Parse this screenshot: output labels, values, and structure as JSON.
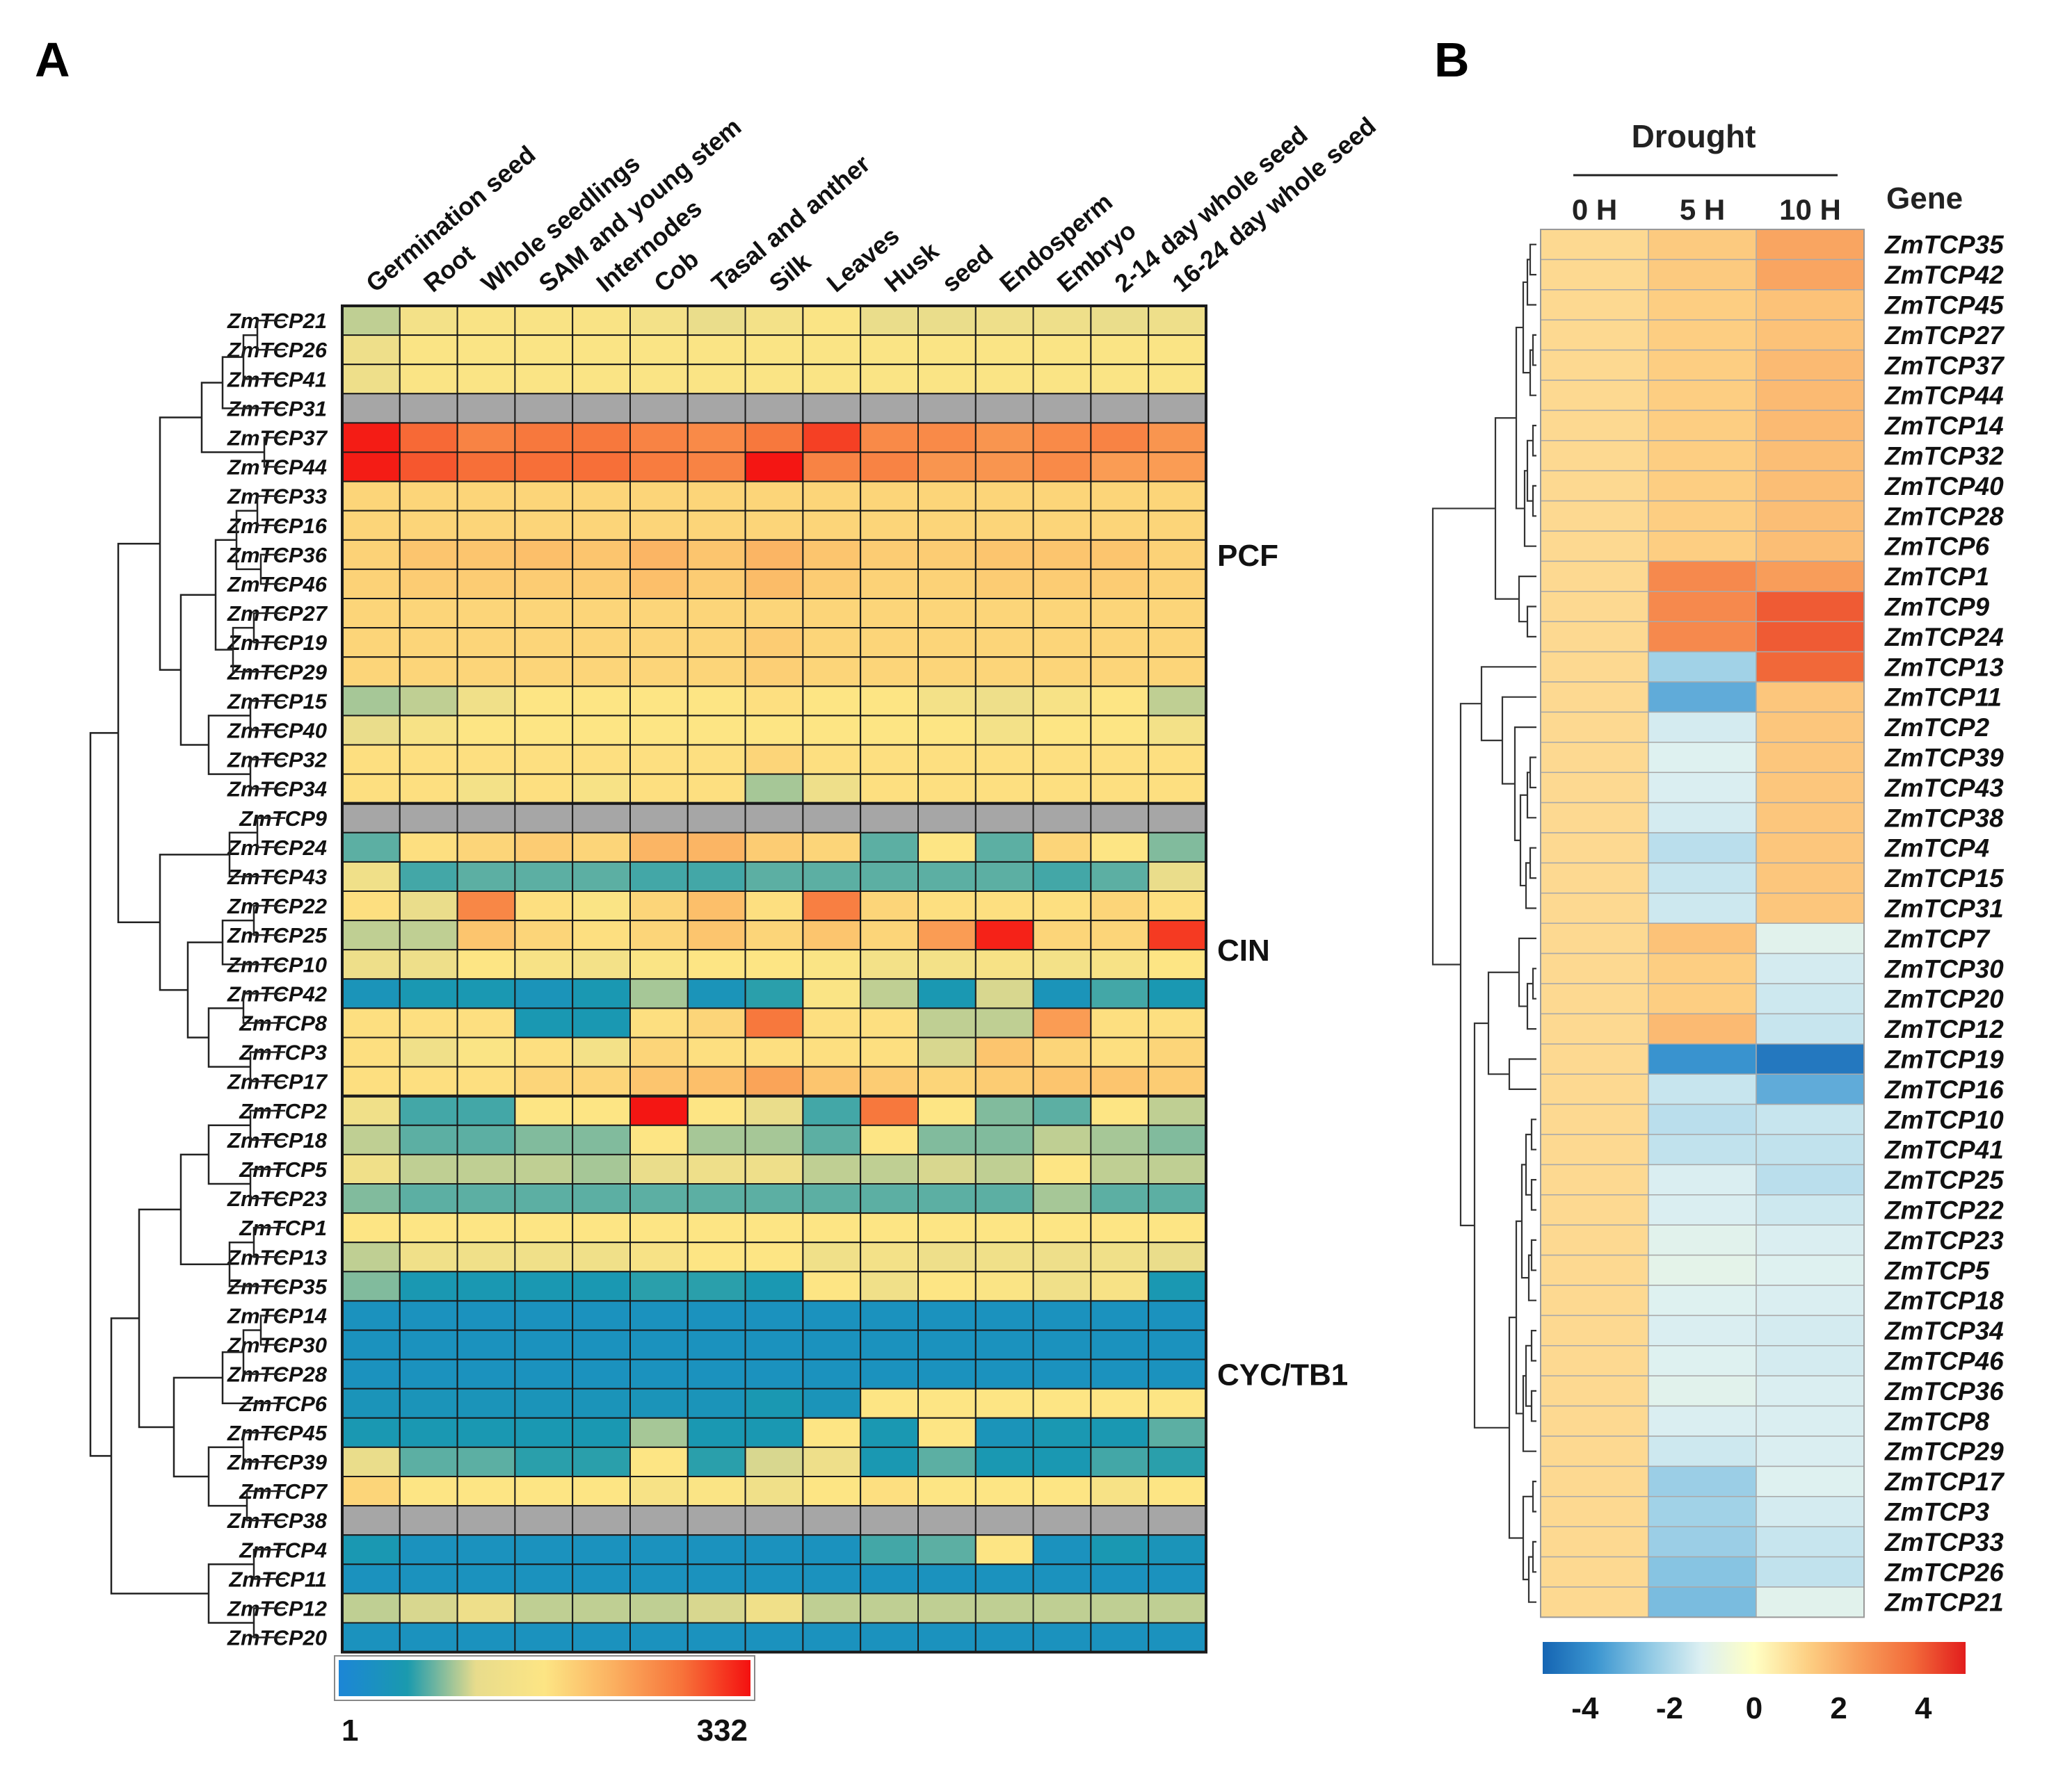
{
  "panels": {
    "a_label": "A",
    "b_label": "B"
  },
  "chart_data": [
    {
      "type": "heatmap",
      "title": "A",
      "columns": [
        "Germination seed",
        "Root",
        "Whole seedlings",
        "SAM and young stem",
        "Internodes",
        "Cob",
        "Tasal and anther",
        "Silk",
        "Leaves",
        "Husk",
        "seed",
        "Endosperm",
        "Embryo",
        "2-14 day whole seed",
        "16-24 day whole seed"
      ],
      "rows": [
        "ZmTCP21",
        "ZmTCP26",
        "ZmTCP41",
        "ZmTCP31",
        "ZmTCP37",
        "ZmTCP44",
        "ZmTCP33",
        "ZmTCP16",
        "ZmTCP36",
        "ZmTCP46",
        "ZmTCP27",
        "ZmTCP19",
        "ZmTCP29",
        "ZmTCP15",
        "ZmTCP40",
        "ZmTCP32",
        "ZmTCP34",
        "ZmTCP9",
        "ZmTCP24",
        "ZmTCP43",
        "ZmTCP22",
        "ZmTCP25",
        "ZmTCP10",
        "ZmTCP42",
        "ZmTCP8",
        "ZmTCP3",
        "ZmTCP17",
        "ZmTCP2",
        "ZmTCP18",
        "ZmTCP5",
        "ZmTCP23",
        "ZmTCP1",
        "ZmTCP13",
        "ZmTCP35",
        "ZmTCP14",
        "ZmTCP30",
        "ZmTCP28",
        "ZmTCP6",
        "ZmTCP45",
        "ZmTCP39",
        "ZmTCP7",
        "ZmTCP38",
        "ZmTCP4",
        "ZmTCP11",
        "ZmTCP12",
        "ZmTCP20"
      ],
      "groups": [
        {
          "name": "PCF",
          "start": 0,
          "end": 16
        },
        {
          "name": "CIN",
          "start": 17,
          "end": 26
        },
        {
          "name": "CYC/TB1",
          "start": 27,
          "end": 45
        }
      ],
      "values": [
        [
          0.3,
          0.42,
          0.47,
          0.47,
          0.47,
          0.42,
          0.35,
          0.42,
          0.48,
          0.35,
          0.35,
          0.38,
          0.38,
          0.35,
          0.38
        ],
        [
          0.38,
          0.48,
          0.48,
          0.48,
          0.48,
          0.48,
          0.48,
          0.48,
          0.48,
          0.48,
          0.48,
          0.48,
          0.48,
          0.48,
          0.48
        ],
        [
          0.38,
          0.48,
          0.48,
          0.48,
          0.48,
          0.48,
          0.48,
          0.48,
          0.48,
          0.48,
          0.48,
          0.48,
          0.48,
          0.48,
          0.48
        ],
        [
          null,
          null,
          null,
          null,
          null,
          null,
          null,
          null,
          null,
          null,
          null,
          null,
          null,
          null,
          null
        ],
        [
          0.98,
          0.85,
          0.79,
          0.82,
          0.82,
          0.79,
          0.77,
          0.82,
          0.92,
          0.77,
          0.77,
          0.74,
          0.77,
          0.79,
          0.74
        ],
        [
          0.98,
          0.88,
          0.84,
          0.84,
          0.84,
          0.81,
          0.79,
          0.99,
          0.79,
          0.79,
          0.74,
          0.74,
          0.77,
          0.72,
          0.72
        ],
        [
          0.55,
          0.55,
          0.55,
          0.55,
          0.55,
          0.55,
          0.55,
          0.55,
          0.55,
          0.55,
          0.55,
          0.55,
          0.55,
          0.55,
          0.55
        ],
        [
          0.55,
          0.55,
          0.55,
          0.55,
          0.55,
          0.55,
          0.55,
          0.55,
          0.55,
          0.55,
          0.55,
          0.55,
          0.55,
          0.55,
          0.55
        ],
        [
          0.56,
          0.6,
          0.6,
          0.62,
          0.6,
          0.65,
          0.6,
          0.65,
          0.6,
          0.58,
          0.58,
          0.6,
          0.6,
          0.6,
          0.56
        ],
        [
          0.56,
          0.58,
          0.58,
          0.58,
          0.58,
          0.62,
          0.58,
          0.63,
          0.58,
          0.56,
          0.56,
          0.58,
          0.58,
          0.58,
          0.56
        ],
        [
          0.55,
          0.55,
          0.55,
          0.55,
          0.55,
          0.55,
          0.55,
          0.55,
          0.55,
          0.55,
          0.55,
          0.55,
          0.55,
          0.55,
          0.55
        ],
        [
          0.55,
          0.55,
          0.55,
          0.55,
          0.55,
          0.55,
          0.55,
          0.58,
          0.55,
          0.55,
          0.55,
          0.55,
          0.55,
          0.55,
          0.55
        ],
        [
          0.55,
          0.55,
          0.55,
          0.55,
          0.55,
          0.55,
          0.55,
          0.57,
          0.55,
          0.55,
          0.55,
          0.55,
          0.55,
          0.55,
          0.55
        ],
        [
          0.28,
          0.3,
          0.4,
          0.5,
          0.5,
          0.5,
          0.5,
          0.52,
          0.5,
          0.5,
          0.42,
          0.38,
          0.45,
          0.5,
          0.3
        ],
        [
          0.35,
          0.45,
          0.5,
          0.5,
          0.5,
          0.5,
          0.5,
          0.5,
          0.5,
          0.5,
          0.5,
          0.42,
          0.5,
          0.5,
          0.42
        ],
        [
          0.52,
          0.52,
          0.52,
          0.52,
          0.52,
          0.52,
          0.52,
          0.55,
          0.52,
          0.52,
          0.52,
          0.52,
          0.52,
          0.52,
          0.52
        ],
        [
          0.52,
          0.52,
          0.42,
          0.52,
          0.45,
          0.52,
          0.52,
          0.28,
          0.38,
          0.52,
          0.52,
          0.52,
          0.52,
          0.52,
          0.52
        ],
        [
          null,
          null,
          null,
          null,
          null,
          null,
          null,
          null,
          null,
          null,
          null,
          null,
          null,
          null,
          null
        ],
        [
          0.22,
          0.52,
          0.55,
          0.58,
          0.55,
          0.65,
          0.65,
          0.58,
          0.55,
          0.22,
          0.5,
          0.22,
          0.55,
          0.5,
          0.25
        ],
        [
          0.4,
          0.2,
          0.22,
          0.22,
          0.22,
          0.2,
          0.2,
          0.22,
          0.22,
          0.22,
          0.22,
          0.22,
          0.2,
          0.22,
          0.35
        ],
        [
          0.52,
          0.35,
          0.78,
          0.52,
          0.48,
          0.55,
          0.62,
          0.52,
          0.8,
          0.55,
          0.52,
          0.52,
          0.52,
          0.55,
          0.52
        ],
        [
          0.3,
          0.3,
          0.6,
          0.55,
          0.52,
          0.55,
          0.6,
          0.55,
          0.6,
          0.55,
          0.72,
          0.97,
          0.55,
          0.55,
          0.93
        ],
        [
          0.38,
          0.38,
          0.5,
          0.45,
          0.42,
          0.48,
          0.5,
          0.5,
          0.48,
          0.42,
          0.42,
          0.45,
          0.42,
          0.45,
          0.5
        ],
        [
          0.12,
          0.15,
          0.15,
          0.12,
          0.15,
          0.28,
          0.12,
          0.18,
          0.48,
          0.3,
          0.15,
          0.32,
          0.12,
          0.2,
          0.15
        ],
        [
          0.52,
          0.52,
          0.52,
          0.15,
          0.15,
          0.52,
          0.55,
          0.82,
          0.52,
          0.52,
          0.3,
          0.3,
          0.72,
          0.52,
          0.52
        ],
        [
          0.52,
          0.4,
          0.48,
          0.52,
          0.42,
          0.55,
          0.52,
          0.52,
          0.52,
          0.52,
          0.32,
          0.6,
          0.55,
          0.52,
          0.55
        ],
        [
          0.52,
          0.52,
          0.52,
          0.55,
          0.55,
          0.6,
          0.62,
          0.7,
          0.6,
          0.58,
          0.55,
          0.58,
          0.6,
          0.6,
          0.58
        ],
        [
          0.4,
          0.2,
          0.2,
          0.5,
          0.5,
          0.99,
          0.5,
          0.35,
          0.2,
          0.82,
          0.5,
          0.25,
          0.22,
          0.5,
          0.3
        ],
        [
          0.3,
          0.22,
          0.22,
          0.25,
          0.25,
          0.5,
          0.28,
          0.28,
          0.22,
          0.5,
          0.25,
          0.25,
          0.3,
          0.28,
          0.25
        ],
        [
          0.4,
          0.3,
          0.3,
          0.3,
          0.28,
          0.35,
          0.38,
          0.38,
          0.3,
          0.3,
          0.32,
          0.3,
          0.5,
          0.3,
          0.3
        ],
        [
          0.25,
          0.22,
          0.22,
          0.22,
          0.22,
          0.22,
          0.22,
          0.22,
          0.22,
          0.22,
          0.22,
          0.22,
          0.28,
          0.22,
          0.22
        ],
        [
          0.5,
          0.5,
          0.5,
          0.5,
          0.5,
          0.5,
          0.5,
          0.5,
          0.5,
          0.5,
          0.5,
          0.5,
          0.5,
          0.5,
          0.5
        ],
        [
          0.3,
          0.4,
          0.4,
          0.4,
          0.4,
          0.45,
          0.5,
          0.5,
          0.4,
          0.42,
          0.38,
          0.4,
          0.38,
          0.4,
          0.35
        ],
        [
          0.25,
          0.15,
          0.15,
          0.15,
          0.15,
          0.18,
          0.18,
          0.15,
          0.5,
          0.4,
          0.5,
          0.48,
          0.4,
          0.45,
          0.15
        ],
        [
          0.1,
          0.1,
          0.1,
          0.1,
          0.1,
          0.1,
          0.1,
          0.1,
          0.1,
          0.1,
          0.1,
          0.1,
          0.1,
          0.1,
          0.1
        ],
        [
          0.1,
          0.1,
          0.1,
          0.1,
          0.1,
          0.1,
          0.1,
          0.1,
          0.1,
          0.1,
          0.1,
          0.1,
          0.1,
          0.1,
          0.1
        ],
        [
          0.1,
          0.1,
          0.1,
          0.1,
          0.1,
          0.1,
          0.1,
          0.1,
          0.1,
          0.1,
          0.1,
          0.1,
          0.1,
          0.1,
          0.1
        ],
        [
          0.12,
          0.12,
          0.12,
          0.12,
          0.12,
          0.12,
          0.12,
          0.15,
          0.12,
          0.5,
          0.5,
          0.5,
          0.5,
          0.5,
          0.5
        ],
        [
          0.15,
          0.15,
          0.15,
          0.15,
          0.15,
          0.28,
          0.15,
          0.15,
          0.5,
          0.15,
          0.5,
          0.12,
          0.15,
          0.15,
          0.22
        ],
        [
          0.35,
          0.22,
          0.22,
          0.18,
          0.18,
          0.5,
          0.18,
          0.32,
          0.38,
          0.15,
          0.22,
          0.15,
          0.15,
          0.2,
          0.18
        ],
        [
          0.55,
          0.5,
          0.5,
          0.5,
          0.5,
          0.45,
          0.48,
          0.4,
          0.5,
          0.52,
          0.5,
          0.5,
          0.5,
          0.45,
          0.5
        ],
        [
          null,
          null,
          null,
          null,
          null,
          null,
          null,
          null,
          null,
          null,
          null,
          null,
          null,
          null,
          null
        ],
        [
          0.15,
          0.1,
          0.1,
          0.1,
          0.1,
          0.1,
          0.1,
          0.1,
          0.1,
          0.2,
          0.22,
          0.5,
          0.1,
          0.15,
          0.12
        ],
        [
          0.1,
          0.1,
          0.1,
          0.1,
          0.1,
          0.1,
          0.1,
          0.1,
          0.1,
          0.1,
          0.1,
          0.1,
          0.1,
          0.1,
          0.1
        ],
        [
          0.3,
          0.32,
          0.38,
          0.3,
          0.3,
          0.3,
          0.32,
          0.4,
          0.3,
          0.3,
          0.3,
          0.3,
          0.3,
          0.3,
          0.3
        ],
        [
          0.1,
          0.1,
          0.1,
          0.1,
          0.1,
          0.1,
          0.1,
          0.1,
          0.1,
          0.1,
          0.1,
          0.1,
          0.1,
          0.1,
          0.1
        ]
      ],
      "scale": {
        "min_label": "1",
        "max_label": "332",
        "min": 1,
        "max": 332
      },
      "colors": {
        "missing": "#A6A6A6",
        "stops": [
          "#1C86D6",
          "#1A9AAE",
          "#E8DC8C",
          "#FDE584",
          "#FBB060",
          "#F7733A",
          "#F41010"
        ]
      }
    },
    {
      "type": "heatmap",
      "title": "B",
      "group_label": "Drought",
      "gene_header": "Gene",
      "columns": [
        "0 H",
        "5 H",
        "10 H"
      ],
      "rows": [
        "ZmTCP35",
        "ZmTCP42",
        "ZmTCP45",
        "ZmTCP27",
        "ZmTCP37",
        "ZmTCP44",
        "ZmTCP14",
        "ZmTCP32",
        "ZmTCP40",
        "ZmTCP28",
        "ZmTCP6",
        "ZmTCP1",
        "ZmTCP9",
        "ZmTCP24",
        "ZmTCP13",
        "ZmTCP11",
        "ZmTCP2",
        "ZmTCP39",
        "ZmTCP43",
        "ZmTCP38",
        "ZmTCP4",
        "ZmTCP15",
        "ZmTCP31",
        "ZmTCP7",
        "ZmTCP30",
        "ZmTCP20",
        "ZmTCP12",
        "ZmTCP19",
        "ZmTCP16",
        "ZmTCP10",
        "ZmTCP41",
        "ZmTCP25",
        "ZmTCP22",
        "ZmTCP23",
        "ZmTCP5",
        "ZmTCP18",
        "ZmTCP34",
        "ZmTCP46",
        "ZmTCP36",
        "ZmTCP8",
        "ZmTCP29",
        "ZmTCP17",
        "ZmTCP3",
        "ZmTCP33",
        "ZmTCP26",
        "ZmTCP21"
      ],
      "values": [
        [
          1.0,
          1.4,
          2.3
        ],
        [
          1.0,
          1.4,
          2.3
        ],
        [
          1.0,
          1.3,
          1.6
        ],
        [
          1.0,
          1.3,
          1.6
        ],
        [
          1.0,
          1.3,
          1.8
        ],
        [
          1.0,
          1.3,
          1.8
        ],
        [
          1.0,
          1.3,
          1.8
        ],
        [
          1.0,
          1.3,
          1.7
        ],
        [
          1.0,
          1.3,
          1.7
        ],
        [
          1.0,
          1.3,
          1.7
        ],
        [
          1.0,
          1.3,
          1.7
        ],
        [
          1.0,
          3.0,
          2.5
        ],
        [
          1.0,
          3.0,
          4.0
        ],
        [
          1.0,
          3.0,
          4.0
        ],
        [
          1.0,
          -2.2,
          3.8
        ],
        [
          1.0,
          -3.2,
          1.5
        ],
        [
          1.0,
          -1.4,
          1.5
        ],
        [
          1.0,
          -1.2,
          1.5
        ],
        [
          1.0,
          -1.3,
          1.5
        ],
        [
          1.0,
          -1.4,
          1.5
        ],
        [
          1.0,
          -1.8,
          1.5
        ],
        [
          1.0,
          -1.6,
          1.5
        ],
        [
          1.0,
          -1.5,
          1.5
        ],
        [
          1.0,
          1.6,
          -1.1
        ],
        [
          1.0,
          1.3,
          -1.4
        ],
        [
          1.0,
          1.3,
          -1.5
        ],
        [
          1.0,
          1.8,
          -1.6
        ],
        [
          1.0,
          -3.8,
          -4.5
        ],
        [
          1.0,
          -1.6,
          -3.2
        ],
        [
          1.0,
          -1.8,
          -1.6
        ],
        [
          1.0,
          -1.7,
          -1.7
        ],
        [
          1.0,
          -1.3,
          -1.8
        ],
        [
          1.0,
          -1.3,
          -1.5
        ],
        [
          1.0,
          -1.1,
          -1.3
        ],
        [
          1.0,
          -1.0,
          -1.2
        ],
        [
          1.0,
          -1.2,
          -1.3
        ],
        [
          1.0,
          -1.3,
          -1.4
        ],
        [
          1.0,
          -1.2,
          -1.4
        ],
        [
          1.0,
          -1.1,
          -1.3
        ],
        [
          1.0,
          -1.3,
          -1.3
        ],
        [
          1.0,
          -1.5,
          -1.3
        ],
        [
          1.0,
          -2.3,
          -1.2
        ],
        [
          1.0,
          -2.2,
          -1.4
        ],
        [
          1.0,
          -2.3,
          -1.6
        ],
        [
          1.0,
          -2.6,
          -1.7
        ],
        [
          1.0,
          -2.8,
          -1.1
        ]
      ],
      "scale": {
        "min": -5,
        "max": 5,
        "ticks": [
          -4,
          -2,
          0,
          2,
          4
        ],
        "tick_labels": [
          "-4",
          "-2",
          "0",
          "2",
          "4"
        ]
      },
      "colors": {
        "stops": [
          "#1565B3",
          "#3B95D0",
          "#8EC8E4",
          "#DDF0F2",
          "#FFFFC4",
          "#FDD084",
          "#F89D5A",
          "#F26B3A",
          "#E21D1D"
        ]
      }
    }
  ]
}
